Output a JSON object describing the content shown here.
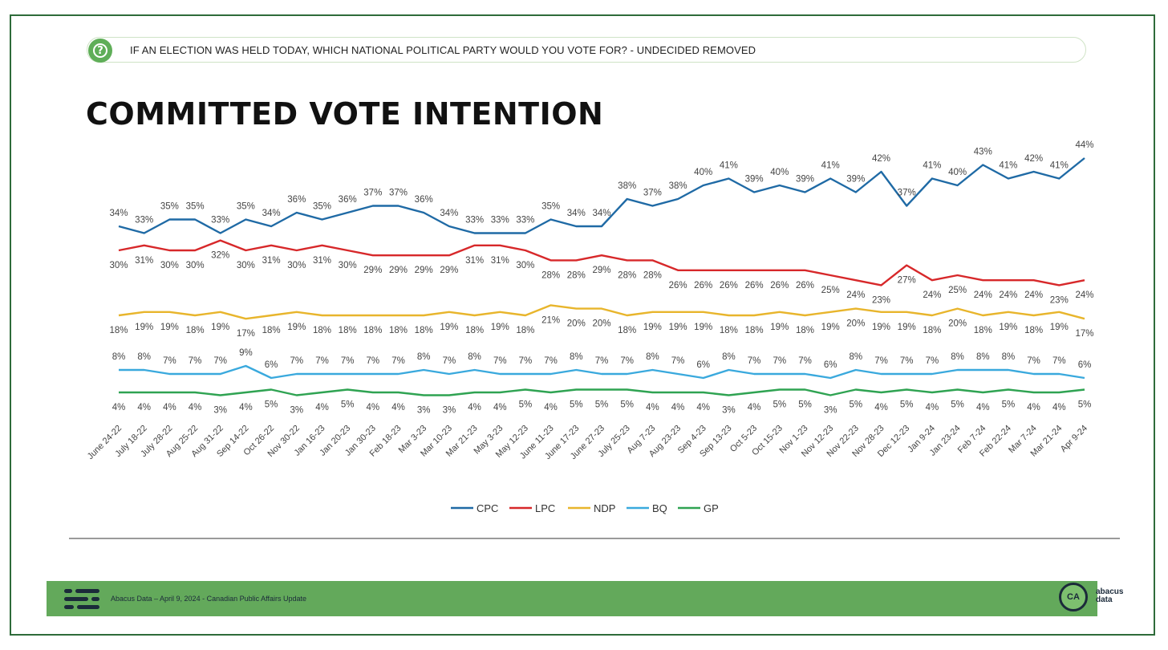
{
  "header": {
    "question": "IF AN ELECTION WAS HELD TODAY, WHICH NATIONAL POLITICAL PARTY WOULD YOU VOTE FOR? - UNDECIDED REMOVED",
    "title": "COMMITTED VOTE INTENTION",
    "question_icon": "question-circle-icon"
  },
  "footer": {
    "text": "Abacus Data – April 9, 2024 - Canadian Public Affairs Update",
    "brand_badge": "CA",
    "brand_line1": "abacus",
    "brand_line2": "data"
  },
  "chart_data": {
    "type": "line",
    "x": [
      "June 24-22",
      "July 18-22",
      "July 28-22",
      "Aug 25-22",
      "Aug 31-22",
      "Sep 14-22",
      "Oct 26-22",
      "Nov 30-22",
      "Jan 16-23",
      "Jan 20-23",
      "Jan 30-23",
      "Feb 18-23",
      "Mar 3-23",
      "Mar 10-23",
      "Mar 21-23",
      "May 3-23",
      "May 12-23",
      "June 11-23",
      "June 17-23",
      "June 27-23",
      "July 25-23",
      "Aug 7-23",
      "Aug 23-23",
      "Sep 4-23",
      "Sep 13-23",
      "Oct 5-23",
      "Oct 15-23",
      "Nov 1-23",
      "Nov 12-23",
      "Nov 22-23",
      "Nov 28-23",
      "Dec 12-23",
      "Jan 9-24",
      "Jan 23-24",
      "Feb 7-24",
      "Feb 22-24",
      "Mar 7-24",
      "Mar 21-24",
      "Apr 9-24"
    ],
    "series": [
      {
        "name": "CPC",
        "color": "#1f6aa5",
        "values": [
          34,
          33,
          35,
          35,
          33,
          35,
          34,
          36,
          35,
          36,
          37,
          37,
          36,
          34,
          33,
          33,
          33,
          35,
          34,
          34,
          38,
          37,
          38,
          40,
          41,
          39,
          40,
          39,
          41,
          39,
          42,
          37,
          41,
          40,
          43,
          41,
          42,
          41,
          44
        ]
      },
      {
        "name": "LPC",
        "color": "#d7282a",
        "values": [
          30,
          31,
          30,
          30,
          32,
          30,
          31,
          30,
          31,
          30,
          29,
          29,
          29,
          29,
          31,
          31,
          30,
          28,
          28,
          29,
          28,
          28,
          26,
          26,
          26,
          26,
          26,
          26,
          25,
          24,
          23,
          27,
          24,
          25,
          24,
          24,
          24,
          23,
          24
        ]
      },
      {
        "name": "NDP",
        "color": "#e8b52c",
        "values": [
          18,
          19,
          19,
          18,
          19,
          17,
          18,
          19,
          18,
          18,
          18,
          18,
          18,
          19,
          18,
          19,
          18,
          21,
          20,
          20,
          18,
          19,
          19,
          19,
          18,
          18,
          19,
          18,
          19,
          20,
          19,
          19,
          18,
          20,
          18,
          19,
          18,
          19,
          17
        ]
      },
      {
        "name": "BQ",
        "color": "#3aa9dd",
        "values": [
          8,
          8,
          7,
          7,
          7,
          9,
          6,
          7,
          7,
          7,
          7,
          7,
          8,
          7,
          8,
          7,
          7,
          7,
          8,
          7,
          7,
          8,
          7,
          6,
          8,
          7,
          7,
          7,
          6,
          8,
          7,
          7,
          7,
          8,
          8,
          8,
          7,
          7,
          6
        ]
      },
      {
        "name": "GP",
        "color": "#2fa352",
        "values": [
          4,
          4,
          4,
          4,
          3,
          4,
          5,
          3,
          4,
          5,
          4,
          4,
          3,
          3,
          4,
          4,
          5,
          4,
          5,
          5,
          5,
          4,
          4,
          4,
          3,
          4,
          5,
          5,
          3,
          5,
          4,
          5,
          4,
          5,
          4,
          5,
          4,
          4,
          5
        ]
      }
    ],
    "value_suffix": "%",
    "legend": [
      "CPC",
      "LPC",
      "NDP",
      "BQ",
      "GP"
    ],
    "legend_position": "bottom",
    "grid": false
  }
}
